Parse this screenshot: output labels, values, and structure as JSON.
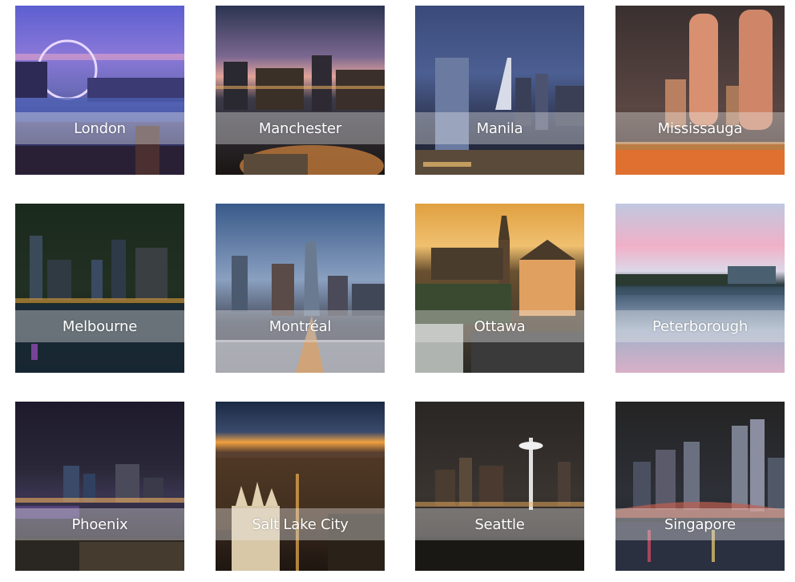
{
  "gallery": {
    "tiles": [
      {
        "label": "London"
      },
      {
        "label": "Manchester"
      },
      {
        "label": "Manila"
      },
      {
        "label": "Mississauga"
      },
      {
        "label": "Melbourne"
      },
      {
        "label": "Montréal"
      },
      {
        "label": "Ottawa"
      },
      {
        "label": "Peterborough"
      },
      {
        "label": "Phoenix"
      },
      {
        "label": "Salt Lake City"
      },
      {
        "label": "Seattle"
      },
      {
        "label": "Singapore"
      }
    ]
  }
}
